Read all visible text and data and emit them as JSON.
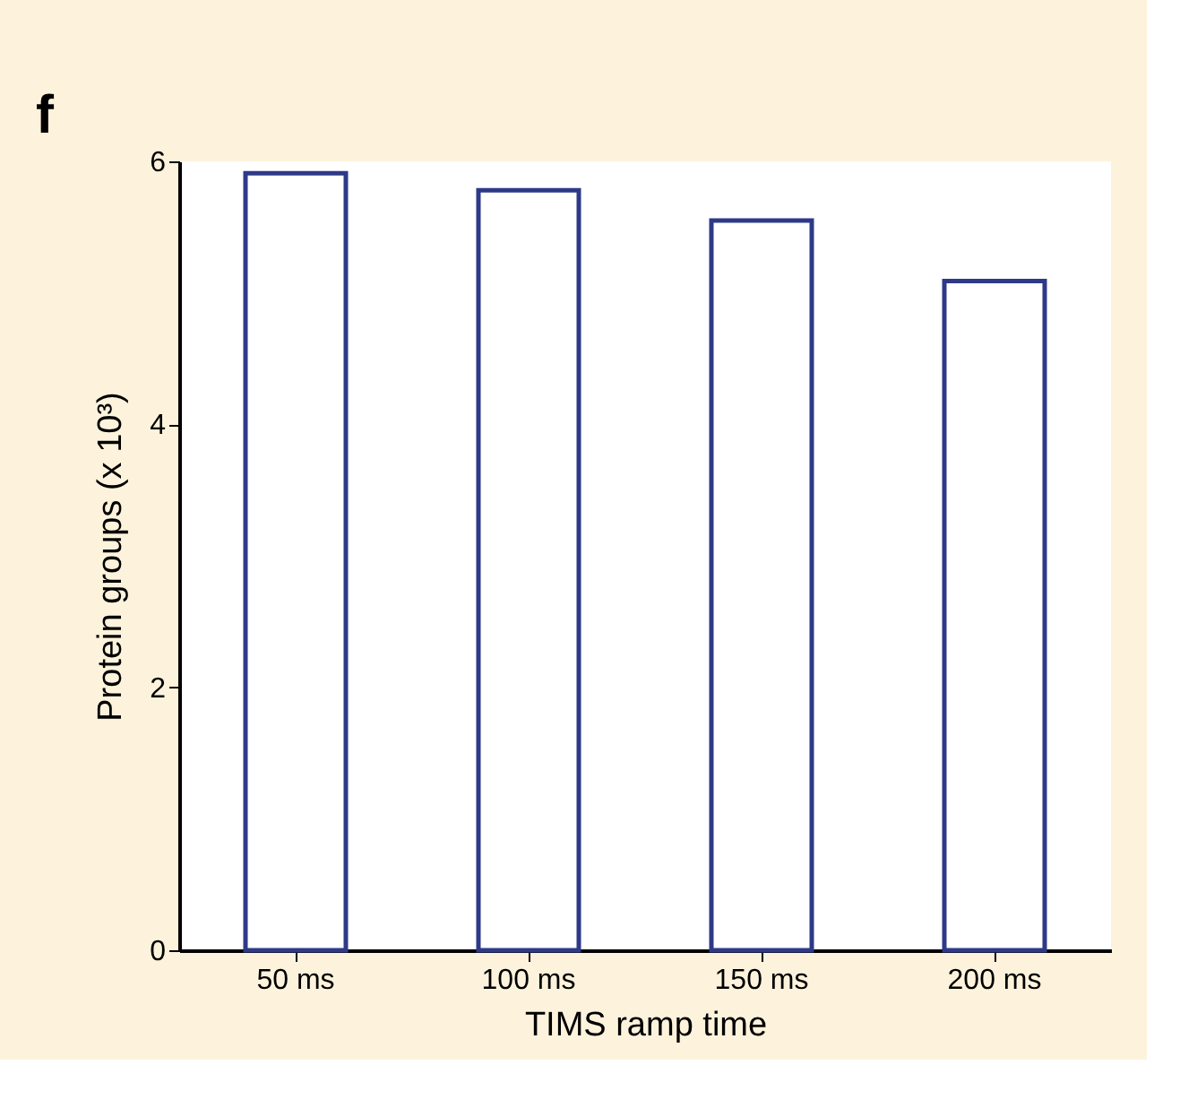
{
  "chart_data": {
    "type": "bar",
    "xlabel": "TIMS ramp time",
    "ylabel": "Protein groups (x 10³)",
    "categories": [
      "50 ms",
      "100 ms",
      "150 ms",
      "200 ms"
    ],
    "values": [
      5.91,
      5.78,
      5.55,
      5.09
    ],
    "color": "#2e3a87",
    "ylim": [
      0,
      6
    ],
    "yticks": [
      0,
      2,
      4,
      6
    ],
    "grid": false,
    "annotations": [
      "f"
    ]
  }
}
